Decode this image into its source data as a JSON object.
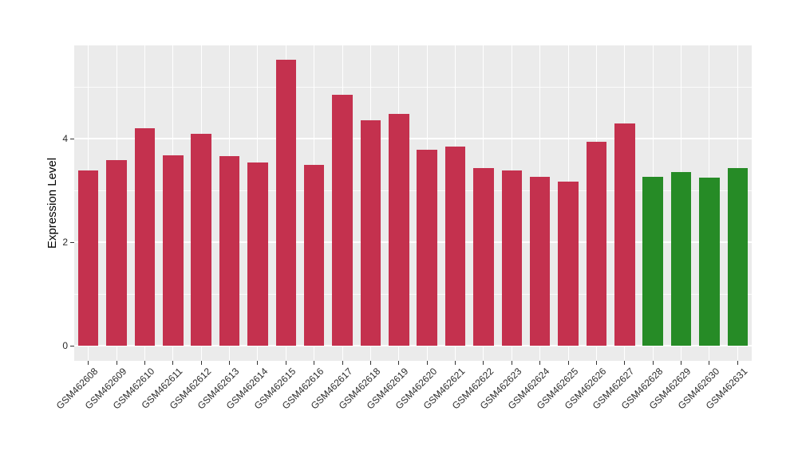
{
  "chart_data": {
    "type": "bar",
    "title": "",
    "xlabel": "",
    "ylabel": "Expression Level",
    "legend": "none",
    "grid": "on",
    "style": {
      "panel_bg": "#EBEBEB",
      "grid_color": "#FFFFFF",
      "tick_color": "#333333",
      "text_color": "#2B2B2B",
      "background": "#FFFFFF",
      "red_bar_color": "#C4314E",
      "green_bar_color": "#268B26"
    },
    "y_axis": {
      "label": "Expression Level",
      "ticks": [
        0,
        2,
        4
      ],
      "minor_gridlines": [
        1,
        3,
        5
      ],
      "range": [
        -0.29,
        5.8
      ]
    },
    "categories": [
      "GSM462608",
      "GSM462609",
      "GSM462610",
      "GSM462611",
      "GSM462612",
      "GSM462613",
      "GSM462614",
      "GSM462615",
      "GSM462616",
      "GSM462617",
      "GSM462618",
      "GSM462619",
      "GSM462620",
      "GSM462621",
      "GSM462622",
      "GSM462623",
      "GSM462624",
      "GSM462625",
      "GSM462626",
      "GSM462627",
      "GSM462628",
      "GSM462629",
      "GSM462630",
      "GSM462631"
    ],
    "values": [
      3.38,
      3.58,
      4.2,
      3.68,
      4.09,
      3.66,
      3.54,
      5.53,
      3.49,
      4.85,
      4.35,
      4.47,
      3.78,
      3.84,
      3.43,
      3.38,
      3.27,
      3.17,
      3.94,
      4.29,
      3.27,
      3.35,
      3.25,
      3.43
    ],
    "bar_colors": [
      "#C4314E",
      "#C4314E",
      "#C4314E",
      "#C4314E",
      "#C4314E",
      "#C4314E",
      "#C4314E",
      "#C4314E",
      "#C4314E",
      "#C4314E",
      "#C4314E",
      "#C4314E",
      "#C4314E",
      "#C4314E",
      "#C4314E",
      "#C4314E",
      "#C4314E",
      "#C4314E",
      "#C4314E",
      "#C4314E",
      "#268B26",
      "#268B26",
      "#268B26",
      "#268B26"
    ]
  }
}
